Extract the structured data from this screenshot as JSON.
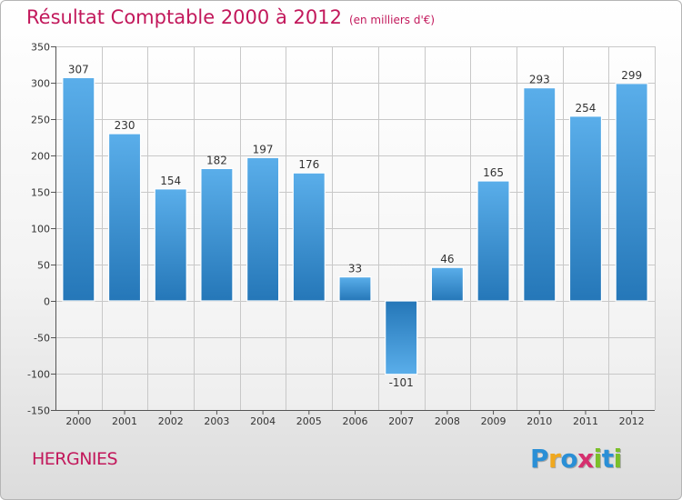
{
  "title": "Résultat Comptable 2000 à 2012",
  "subtitle": "(en milliers d'€)",
  "location": "HERGNIES",
  "brand": {
    "name": "Proxiti",
    "letters": [
      {
        "ch": "P",
        "color": "#2a8fd6"
      },
      {
        "ch": "r",
        "color": "#f0a81e"
      },
      {
        "ch": "o",
        "color": "#2a8fd6"
      },
      {
        "ch": "x",
        "color": "#d62f6e"
      },
      {
        "ch": "i",
        "color": "#7bbf2a"
      },
      {
        "ch": "t",
        "color": "#2a8fd6"
      },
      {
        "ch": "i",
        "color": "#7bbf2a"
      }
    ]
  },
  "colors": {
    "title": "#c2185b",
    "bar_light": "#5aaeea",
    "bar_dark": "#2577b8",
    "grid": "#c8c8c8"
  },
  "chart_data": {
    "type": "bar",
    "title": "Résultat Comptable 2000 à 2012",
    "subtitle": "(en milliers d'€)",
    "categories": [
      "2000",
      "2001",
      "2002",
      "2003",
      "2004",
      "2005",
      "2006",
      "2007",
      "2008",
      "2009",
      "2010",
      "2011",
      "2012"
    ],
    "values": [
      307,
      230,
      154,
      182,
      197,
      176,
      33,
      -101,
      46,
      165,
      293,
      254,
      299
    ],
    "value_labels": [
      "307",
      "230",
      "154",
      "182",
      "197",
      "176",
      "33",
      "-101",
      "46",
      "165",
      "293",
      "254",
      "299"
    ],
    "ylim": [
      -150,
      350
    ],
    "yticks": [
      -150,
      -100,
      -50,
      0,
      50,
      100,
      150,
      200,
      250,
      300,
      350
    ],
    "ytick_labels": [
      "-150",
      "-100",
      "-50",
      "0",
      "50",
      "100",
      "150",
      "200",
      "250",
      "300",
      "350"
    ],
    "grid": true,
    "legend": "none"
  }
}
